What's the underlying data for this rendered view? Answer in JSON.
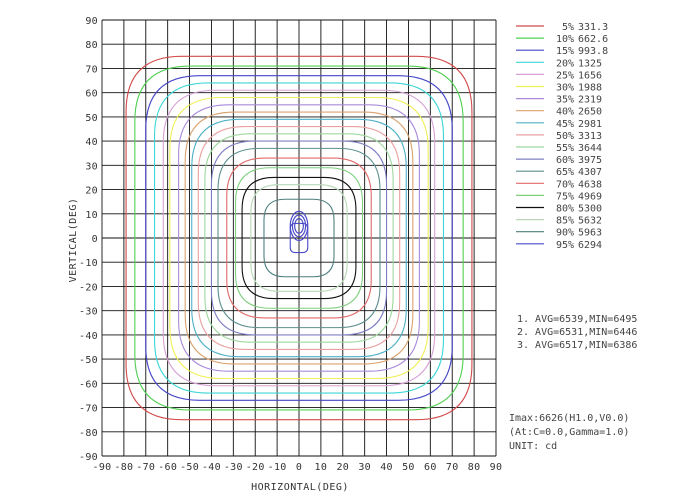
{
  "chart_data": {
    "type": "contour",
    "xlabel": "HORIZONTAL(DEG)",
    "ylabel": "VERTICAL(DEG)",
    "xlim": [
      -90,
      90
    ],
    "ylim": [
      -90,
      90
    ],
    "xticks": [
      -90,
      -80,
      -70,
      -60,
      -50,
      -40,
      -30,
      -20,
      -10,
      0,
      10,
      20,
      30,
      40,
      50,
      60,
      70,
      80,
      90
    ],
    "yticks": [
      90,
      80,
      70,
      60,
      50,
      40,
      30,
      20,
      10,
      0,
      -10,
      -20,
      -30,
      -40,
      -50,
      -60,
      -70,
      -80,
      -90
    ],
    "grid": true,
    "legend_position": "right",
    "series": [
      {
        "name": "5%",
        "value": "331.3",
        "color": "#d24b4b",
        "extent_deg": [
          79,
          75
        ]
      },
      {
        "name": "10%",
        "value": "662.6",
        "color": "#52d052",
        "extent_deg": [
          75,
          71
        ]
      },
      {
        "name": "15%",
        "value": "993.8",
        "color": "#4646c8",
        "extent_deg": [
          70,
          67
        ]
      },
      {
        "name": "20%",
        "value": "1325",
        "color": "#3ed6d6",
        "extent_deg": [
          66,
          64
        ]
      },
      {
        "name": "25%",
        "value": "1656",
        "color": "#d6a1d6",
        "extent_deg": [
          62,
          61
        ]
      },
      {
        "name": "30%",
        "value": "1988",
        "color": "#f0f05a",
        "extent_deg": [
          59,
          58
        ]
      },
      {
        "name": "35%",
        "value": "2319",
        "color": "#a98bd9",
        "extent_deg": [
          55,
          55
        ]
      },
      {
        "name": "40%",
        "value": "2650",
        "color": "#d9a26f",
        "extent_deg": [
          52,
          52
        ]
      },
      {
        "name": "45%",
        "value": "2981",
        "color": "#4fb0c8",
        "extent_deg": [
          49,
          49
        ]
      },
      {
        "name": "50%",
        "value": "3313",
        "color": "#e9a0a0",
        "extent_deg": [
          46,
          46
        ]
      },
      {
        "name": "55%",
        "value": "3644",
        "color": "#9ed89e",
        "extent_deg": [
          43,
          43
        ]
      },
      {
        "name": "60%",
        "value": "3975",
        "color": "#7f7fc4",
        "extent_deg": [
          40,
          40
        ]
      },
      {
        "name": "65%",
        "value": "4307",
        "color": "#5c8f8f",
        "extent_deg": [
          37,
          37
        ]
      },
      {
        "name": "70%",
        "value": "4638",
        "color": "#e26a6a",
        "extent_deg": [
          33,
          33
        ]
      },
      {
        "name": "75%",
        "value": "4969",
        "color": "#7fcf7f",
        "extent_deg": [
          29,
          29
        ]
      },
      {
        "name": "80%",
        "value": "5300",
        "color": "#111111",
        "extent_deg": [
          26,
          25
        ]
      },
      {
        "name": "85%",
        "value": "5632",
        "color": "#b7d8b7",
        "extent_deg": [
          22,
          22
        ]
      },
      {
        "name": "90%",
        "value": "5963",
        "color": "#4f7f7f",
        "extent_deg": [
          16,
          16
        ]
      },
      {
        "name": "95%",
        "value": "6294",
        "color": "#4b4bc8",
        "extent_deg": [
          4,
          6
        ]
      }
    ],
    "peak_lobes": [
      {
        "cx": 0,
        "cy": 5,
        "rx": 4,
        "ry": 6,
        "color": "#4b4bc8"
      },
      {
        "cx": 0,
        "cy": 5,
        "rx": 3,
        "ry": 4.5,
        "color": "#4b4bc8"
      },
      {
        "cx": 0,
        "cy": 5,
        "rx": 2,
        "ry": 3,
        "color": "#4b4bc8"
      }
    ],
    "stats": [
      "1. AVG=6539,MIN=6495",
      "2. AVG=6531,MIN=6446",
      "3. AVG=6517,MIN=6386"
    ],
    "info": [
      "Imax:6626(H1.0,V0.0)",
      "(At:C=0.0,Gamma=1.0)",
      "UNIT: cd"
    ]
  }
}
